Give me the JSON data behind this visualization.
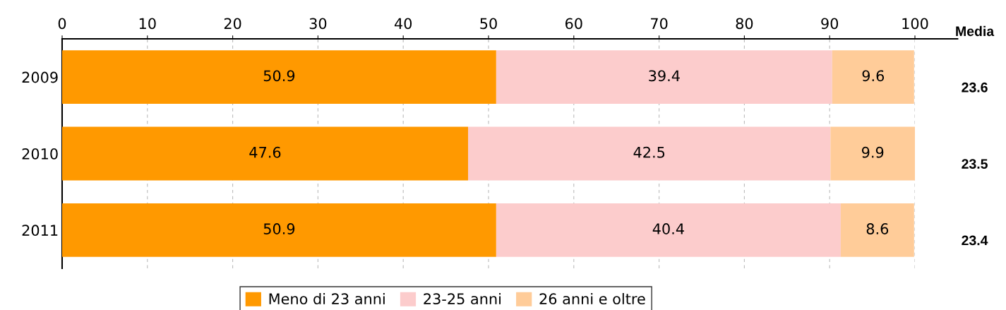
{
  "chart_data": {
    "type": "bar",
    "orientation": "horizontal",
    "stacked": true,
    "categories": [
      "2009",
      "2010",
      "2011"
    ],
    "series": [
      {
        "name": "Meno di 23 anni",
        "color": "#ff9900",
        "values": [
          50.9,
          47.6,
          50.9
        ]
      },
      {
        "name": "23-25 anni",
        "color": "#fccccc",
        "values": [
          39.4,
          42.5,
          40.4
        ]
      },
      {
        "name": "26 anni e oltre",
        "color": "#ffcc99",
        "values": [
          9.6,
          9.9,
          8.6
        ]
      }
    ],
    "xlim": [
      0,
      100
    ],
    "xticks": [
      0,
      10,
      20,
      30,
      40,
      50,
      60,
      70,
      80,
      90,
      100
    ],
    "grid": "x",
    "legend": "bottom",
    "data_labels": true,
    "annotations": [
      "Media",
      "23.6",
      "23.5",
      "23.4"
    ]
  }
}
